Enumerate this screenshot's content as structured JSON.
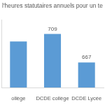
{
  "chart_data": {
    "type": "bar",
    "title": "l'heures statutaires annuels pour un te",
    "categories": [
      "ollège",
      "DCDE collège",
      "DCDE Lycée"
    ],
    "values": [
      698,
      709,
      667
    ],
    "value_labels": [
      null,
      "709",
      "667"
    ],
    "color": "#5b9bd5",
    "ylim": [
      630,
      730
    ],
    "grid": false,
    "data_labels": true,
    "tick_labels": "x"
  }
}
